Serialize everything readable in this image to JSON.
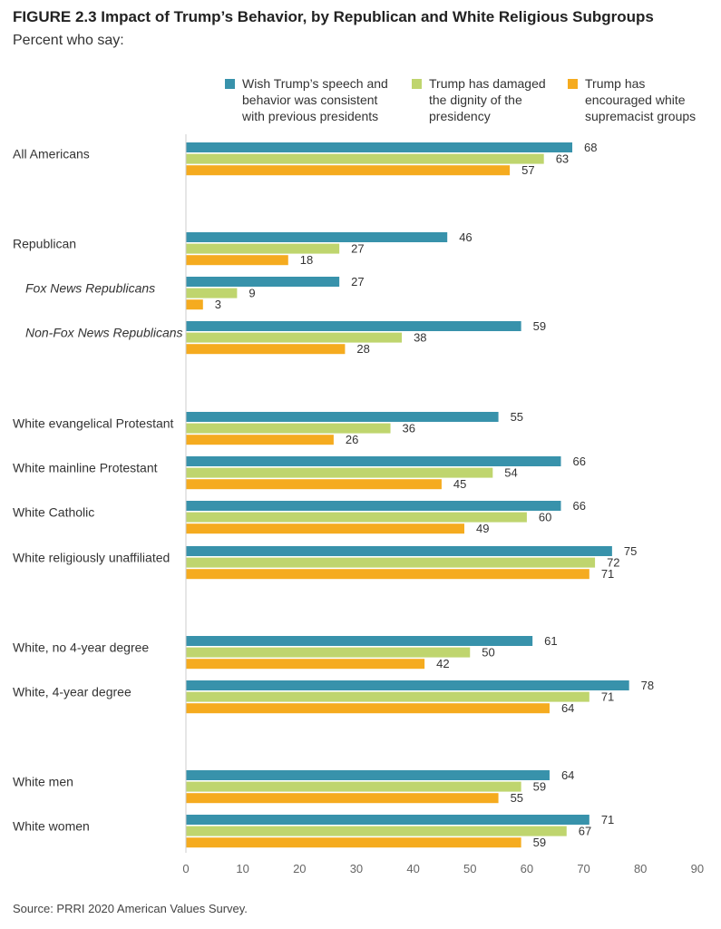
{
  "figure": {
    "title": "FIGURE 2.3  Impact of Trump’s Behavior, by Republican and White Religious Subgroups",
    "subtitle": "Percent who say:",
    "source": "Source: PRRI 2020 American Values Survey."
  },
  "chart_data": {
    "type": "bar",
    "orientation": "horizontal",
    "title": "FIGURE 2.3  Impact of Trump’s Behavior, by Republican and White Religious Subgroups",
    "subtitle": "Percent who say:",
    "xlabel": "",
    "ylabel": "",
    "xlim": [
      0,
      90
    ],
    "xticks": [
      0,
      10,
      20,
      30,
      40,
      50,
      60,
      70,
      80,
      90
    ],
    "grid": false,
    "legend_position": "top-right",
    "categories": [
      "All Americans",
      "Republican",
      "Fox News Republicans",
      "Non-Fox News Republicans",
      "White evangelical Protestant",
      "White mainline Protestant",
      "White Catholic",
      "White religiously unaffiliated",
      "White, no 4-year degree",
      "White, 4-year degree",
      "White men",
      "White women"
    ],
    "italic_categories": [
      "Fox News Republicans",
      "Non-Fox News Republicans"
    ],
    "series": [
      {
        "name": "Wish Trump’s speech and behavior was consistent with previous presidents",
        "legend_lines": [
          "Wish Trump’s speech and",
          "behavior was consistent",
          "with previous presidents"
        ],
        "color": "#3892ab",
        "values": [
          68,
          46,
          27,
          59,
          55,
          66,
          66,
          75,
          61,
          78,
          64,
          71
        ]
      },
      {
        "name": "Trump has damaged the dignity of the presidency",
        "legend_lines": [
          "Trump has damaged",
          "the dignity of the",
          "presidency"
        ],
        "color": "#bfd56e",
        "values": [
          63,
          27,
          9,
          38,
          36,
          54,
          60,
          72,
          50,
          71,
          59,
          67
        ]
      },
      {
        "name": "Trump has encouraged white supremacist groups",
        "legend_lines": [
          "Trump has",
          "encouraged white",
          "supremacist groups"
        ],
        "color": "#f5ab1f",
        "values": [
          57,
          18,
          3,
          28,
          26,
          45,
          49,
          71,
          42,
          64,
          55,
          59
        ]
      }
    ]
  }
}
